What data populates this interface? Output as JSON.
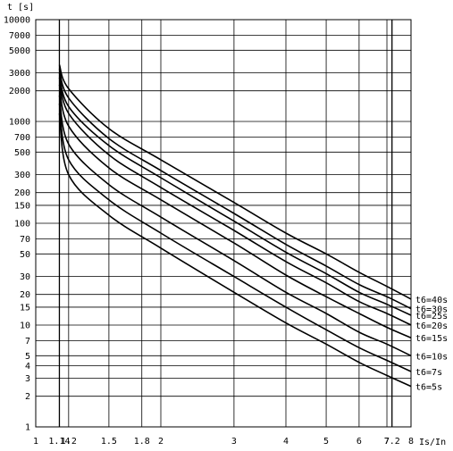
{
  "chart_data": {
    "type": "line",
    "title": "",
    "xlabel": "Is/In",
    "ylabel": "t [s]",
    "x_scale": "log",
    "y_scale": "log",
    "xlim": [
      1,
      8
    ],
    "ylim": [
      1,
      10000
    ],
    "grid": true,
    "legend_placement": "right",
    "x_tick_labels": [
      "1",
      "1.14",
      "1.2",
      "1.5",
      "1.8",
      "2",
      "3",
      "4",
      "5",
      "6",
      "7",
      "7.2",
      "8"
    ],
    "y_tick_labels": [
      "1",
      "2",
      "3",
      "4",
      "5",
      "7",
      "10",
      "15",
      "20",
      "30",
      "50",
      "70",
      "100",
      "150",
      "200",
      "300",
      "500",
      "700",
      "1000",
      "2000",
      "3000",
      "5000",
      "7000",
      "10000"
    ],
    "series": [
      {
        "name": "t6=40s",
        "x": [
          1.14,
          1.2,
          1.5,
          2,
          3,
          4,
          5,
          6,
          7,
          8
        ],
        "y": [
          3600,
          2100,
          850,
          420,
          160,
          80,
          50,
          33,
          24,
          18
        ]
      },
      {
        "name": "t6=30s",
        "x": [
          1.14,
          1.2,
          1.5,
          2,
          3,
          4,
          5,
          6,
          7,
          8
        ],
        "y": [
          3300,
          1700,
          680,
          330,
          125,
          62,
          38,
          25,
          19,
          14.5
        ]
      },
      {
        "name": "t6=25s",
        "x": [
          1.14,
          1.2,
          1.5,
          2,
          3,
          4,
          5,
          6,
          7,
          8
        ],
        "y": [
          3000,
          1400,
          580,
          280,
          105,
          52,
          32,
          21,
          16,
          12.5
        ]
      },
      {
        "name": "t6=20s",
        "x": [
          1.14,
          1.2,
          1.5,
          2,
          3,
          4,
          5,
          6,
          7,
          8
        ],
        "y": [
          2700,
          1200,
          470,
          225,
          85,
          42,
          26,
          17,
          13,
          10
        ]
      },
      {
        "name": "t6=15s",
        "x": [
          1.14,
          1.2,
          1.5,
          2,
          3,
          4,
          5,
          6,
          7,
          8
        ],
        "y": [
          2300,
          900,
          350,
          170,
          64,
          31,
          19,
          13,
          9.5,
          7.5
        ]
      },
      {
        "name": "t6=10s",
        "x": [
          1.14,
          1.2,
          1.5,
          2,
          3,
          4,
          5,
          6,
          7,
          8
        ],
        "y": [
          1800,
          600,
          240,
          115,
          43,
          21,
          13,
          8.5,
          6.5,
          5
        ]
      },
      {
        "name": "t6=7s",
        "x": [
          1.14,
          1.2,
          1.5,
          2,
          3,
          4,
          5,
          6,
          7,
          8
        ],
        "y": [
          1500,
          420,
          170,
          80,
          30,
          15,
          9,
          6,
          4.5,
          3.5
        ]
      },
      {
        "name": "t6=5s",
        "x": [
          1.14,
          1.2,
          1.5,
          2,
          3,
          4,
          5,
          6,
          7,
          8
        ],
        "y": [
          1200,
          300,
          120,
          57,
          21,
          10.5,
          6.5,
          4.3,
          3.2,
          2.5
        ]
      }
    ]
  }
}
